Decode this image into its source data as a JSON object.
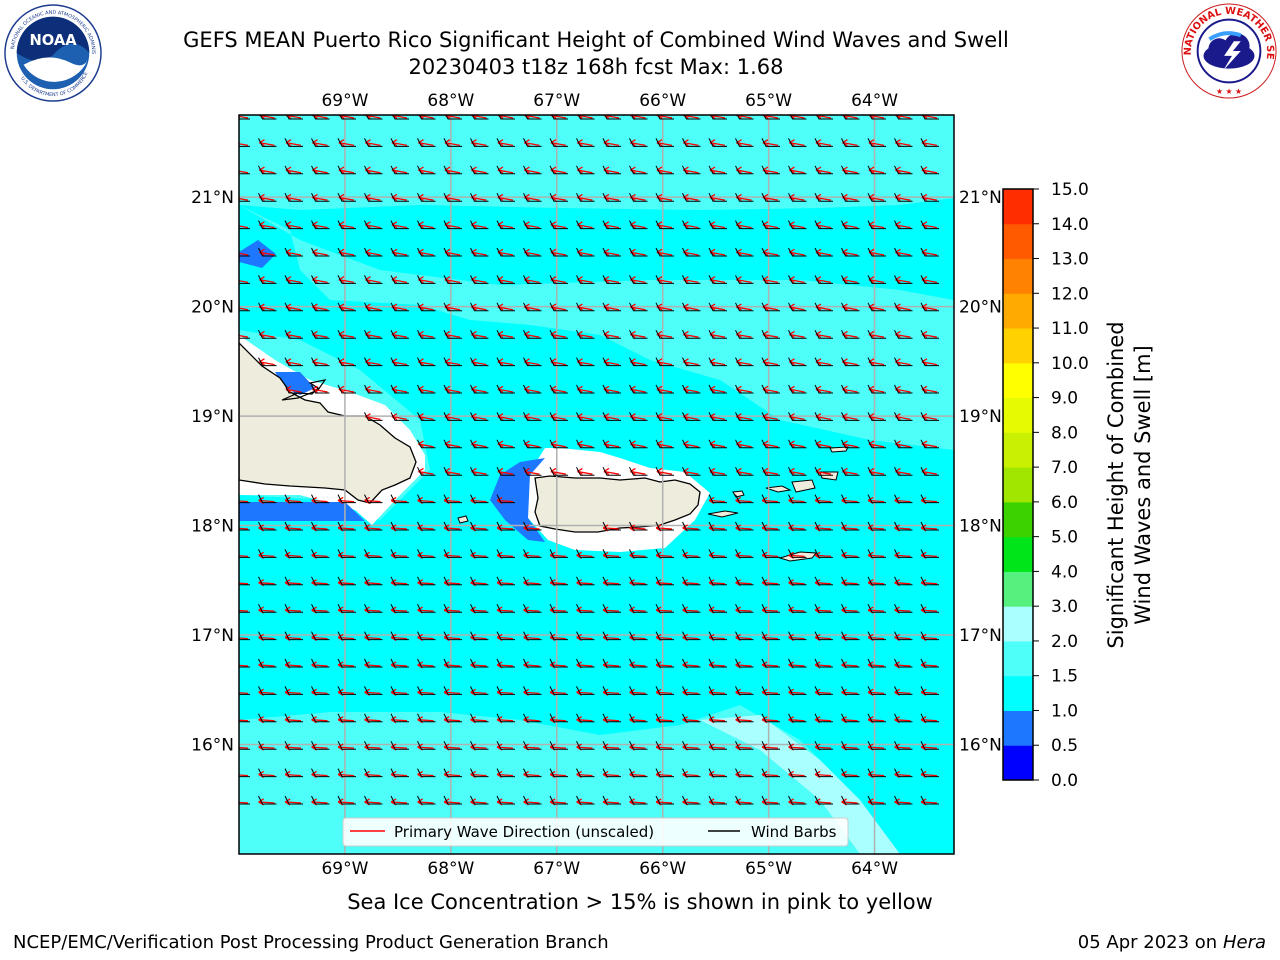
{
  "header": {
    "title_line1": "GEFS MEAN Puerto Rico Significant Height of Combined Wind Waves and Swell",
    "title_line2": "20230403 t18z 168h fcst   Max: 1.68"
  },
  "logos": {
    "left": "noaa-logo",
    "right": "nws-logo",
    "noaa_text": "NOAA",
    "noaa_ring_text": "NATIONAL OCEANIC AND ATMOSPHERIC ADMINISTRATION",
    "noaa_ring_bottom": "U.S. DEPARTMENT OF COMMERCE",
    "nws_ring_text": "NATIONAL WEATHER SERVICE"
  },
  "map": {
    "lon_labels": [
      "69°W",
      "68°W",
      "67°W",
      "66°W",
      "65°W",
      "64°W"
    ],
    "lat_labels": [
      "21°N",
      "20°N",
      "19°N",
      "18°N",
      "17°N",
      "16°N"
    ],
    "lon_ticks": [
      -69,
      -68,
      -67,
      -66,
      -65,
      -64
    ],
    "lat_ticks": [
      21,
      20,
      19,
      18,
      17,
      16
    ],
    "lon_range": [
      -70,
      -63.25
    ],
    "lat_range": [
      15,
      21.75
    ],
    "ocean_color": "#00ffff",
    "light_ocean_color": "#4dfff8",
    "land_color": "#eeecdc",
    "low_wave_color": "#1e78ff",
    "wave_arrow_color": "#ff0000",
    "wind_barb_color": "#000000",
    "gridlines": true
  },
  "legend": {
    "wave_label": "Primary Wave Direction (unscaled)",
    "wind_label": "Wind Barbs"
  },
  "colorbar": {
    "title_line1": "Significant Height of Combined",
    "title_line2": "Wind Waves and Swell [m]",
    "levels": [
      "0.0",
      "0.5",
      "1.0",
      "1.5",
      "2.0",
      "3.0",
      "4.0",
      "5.0",
      "6.0",
      "7.0",
      "8.0",
      "9.0",
      "10.0",
      "11.0",
      "12.0",
      "13.0",
      "14.0",
      "15.0"
    ],
    "colors": [
      "#0000ff",
      "#1e78ff",
      "#00ffff",
      "#4dfff8",
      "#aaffff",
      "#55f07d",
      "#00e51a",
      "#3cd200",
      "#a0e600",
      "#c8f000",
      "#e6fa00",
      "#ffff00",
      "#ffd200",
      "#ffaa00",
      "#ff8200",
      "#ff5a00",
      "#ff2d00"
    ]
  },
  "notes": {
    "ice": "Sea Ice Concentration > 15% is shown in pink to yellow"
  },
  "footer": {
    "left": "NCEP/EMC/Verification Post Processing Product Generation Branch",
    "right_date": "05 Apr 2023 on ",
    "right_host": "Hera"
  }
}
